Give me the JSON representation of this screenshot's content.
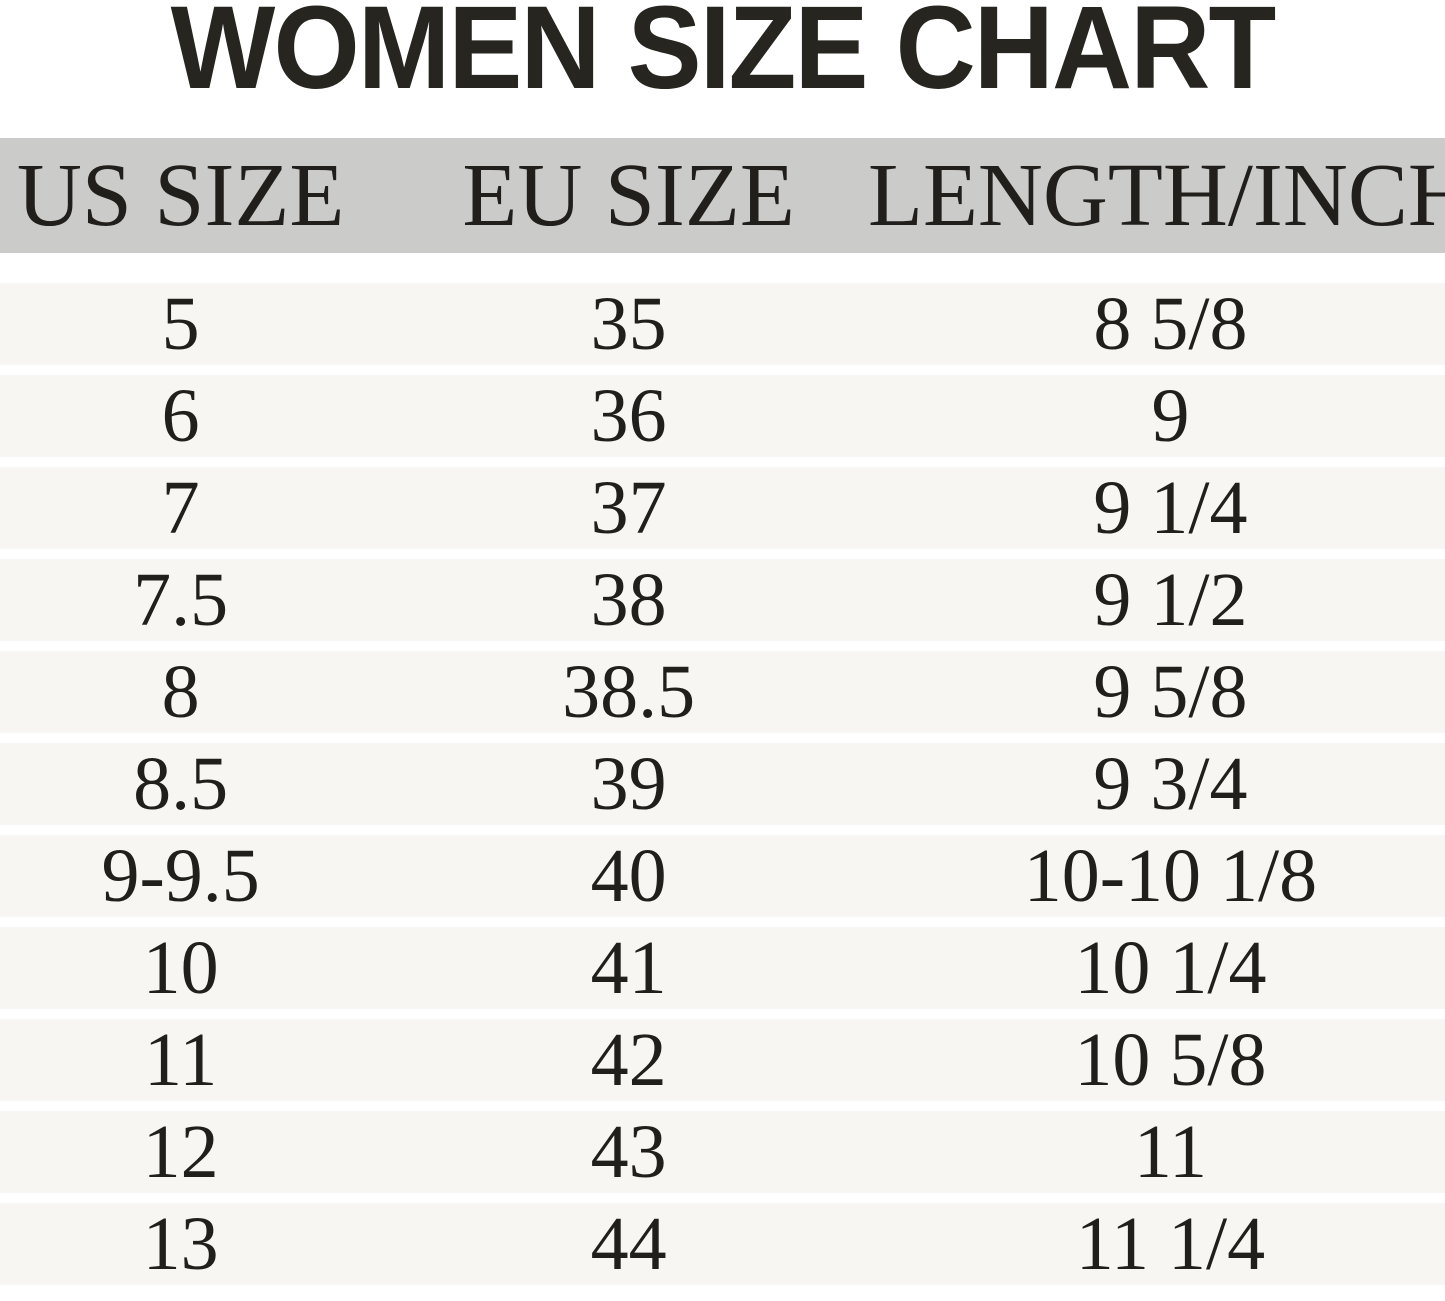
{
  "title": "WOMEN SIZE CHART",
  "colors": {
    "page_bg": "#ffffff",
    "header_band_bg": "#cbcbc9",
    "row_bg": "#f7f6f2",
    "title_text": "#26251f",
    "table_text": "#211f1c"
  },
  "chart_data": {
    "type": "table",
    "title": "WOMEN SIZE CHART",
    "columns": [
      "US SIZE",
      "EU SIZE",
      "LENGTH/INCH"
    ],
    "rows": [
      [
        "5",
        "35",
        "8 5/8"
      ],
      [
        "6",
        "36",
        "9"
      ],
      [
        "7",
        "37",
        "9 1/4"
      ],
      [
        "7.5",
        "38",
        "9 1/2"
      ],
      [
        "8",
        "38.5",
        "9 5/8"
      ],
      [
        "8.5",
        "39",
        "9 3/4"
      ],
      [
        "9-9.5",
        "40",
        "10-10 1/8"
      ],
      [
        "10",
        "41",
        "10 1/4"
      ],
      [
        "11",
        "42",
        "10 5/8"
      ],
      [
        "12",
        "43",
        "11"
      ],
      [
        "13",
        "44",
        "11 1/4"
      ]
    ],
    "layout": {
      "legend": "none",
      "grid": "horizontal row bands",
      "column_alignment": "center"
    }
  }
}
